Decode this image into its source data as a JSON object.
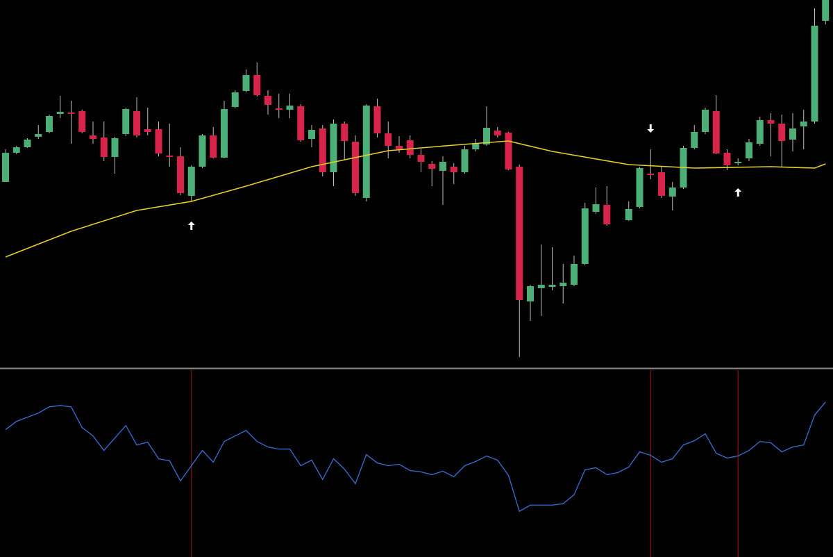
{
  "chart_data": {
    "type": "candlestick",
    "ylim": [
      0,
      530
    ],
    "up_color": "#4caf78",
    "down_color": "#d8234a",
    "open": [
      268,
      310,
      318,
      333,
      340,
      366,
      368,
      370,
      335,
      332,
      304,
      337,
      370,
      344,
      344,
      306,
      305,
      248,
      290,
      335,
      303,
      376,
      399,
      422,
      392,
      374,
      372,
      377,
      330,
      345,
      282,
      352,
      326,
      245,
      377,
      338,
      320,
      328,
      307,
      294,
      284,
      290,
      282,
      315,
      322,
      342,
      339,
      290,
      96,
      115,
      117,
      118,
      120,
      150,
      225,
      235,
      null,
      213,
      232,
      280,
      282,
      247,
      260,
      317,
      340,
      370,
      310,
      295,
      302,
      323,
      357,
      352,
      329,
      348,
      355,
      500
    ],
    "high": [
      315,
      320,
      331,
      350,
      365,
      392,
      385,
      372,
      355,
      355,
      333,
      375,
      390,
      375,
      355,
      352,
      318,
      292,
      337,
      347,
      385,
      400,
      430,
      440,
      400,
      395,
      395,
      380,
      350,
      350,
      358,
      355,
      335,
      380,
      388,
      355,
      334,
      335,
      315,
      298,
      305,
      295,
      320,
      330,
      377,
      347,
      340,
      293,
      120,
      178,
      174,
      150,
      162,
      238,
      260,
      262,
      null,
      240,
      290,
      315,
      290,
      268,
      320,
      350,
      375,
      393,
      315,
      302,
      330,
      362,
      367,
      365,
      367,
      372,
      518,
      530
    ],
    "low": [
      268,
      308,
      317,
      330,
      338,
      360,
      323,
      338,
      323,
      298,
      280,
      334,
      332,
      335,
      305,
      290,
      249,
      240,
      288,
      302,
      302,
      374,
      397,
      391,
      365,
      360,
      360,
      326,
      318,
      276,
      262,
      300,
      248,
      240,
      332,
      302,
      310,
      302,
      282,
      262,
      235,
      265,
      280,
      312,
      320,
      332,
      285,
      16,
      68,
      75,
      112,
      93,
      118,
      148,
      222,
      205,
      null,
      212,
      230,
      272,
      245,
      227,
      258,
      315,
      337,
      308,
      285,
      292,
      298,
      320,
      305,
      290,
      312,
      315,
      352,
      495
    ],
    "close": [
      310,
      318,
      329,
      337,
      363,
      369,
      367,
      340,
      330,
      304,
      331,
      373,
      335,
      340,
      309,
      304,
      252,
      290,
      335,
      303,
      373,
      397,
      422,
      393,
      379,
      372,
      378,
      328,
      343,
      282,
      352,
      327,
      252,
      378,
      338,
      320,
      315,
      307,
      297,
      287,
      297,
      282,
      315,
      324,
      346,
      335,
      286,
      98,
      118,
      120,
      120,
      123,
      150,
      230,
      236,
      207,
      null,
      229,
      288,
      278,
      248,
      260,
      317,
      340,
      372,
      309,
      292,
      297,
      325,
      357,
      352,
      327,
      345,
      355,
      493,
      530
    ],
    "ma": {
      "color": "#e6d12c",
      "x": [
        0,
        6,
        12,
        17,
        22,
        28,
        35,
        41,
        46,
        50,
        57,
        63,
        70,
        74,
        75
      ],
      "values": [
        160,
        197,
        227,
        240,
        262,
        290,
        313,
        321,
        327,
        312,
        293,
        288,
        290,
        288,
        294
      ]
    },
    "signals": [
      {
        "index": 17,
        "direction": "up",
        "value": 205
      },
      {
        "index": 59,
        "direction": "down",
        "value": 345
      },
      {
        "index": 67,
        "direction": "up",
        "value": 253
      }
    ],
    "signal_color": "#ffffff",
    "signal_line_color": "#a3161c",
    "oscillator": {
      "color": "#3b6fd4",
      "ylim": [
        0,
        270
      ],
      "values": [
        184,
        196,
        202,
        208,
        217,
        219,
        217,
        187,
        175,
        154,
        172,
        190,
        162,
        166,
        142,
        139,
        110,
        132,
        154,
        137,
        167,
        175,
        183,
        167,
        159,
        156,
        156,
        132,
        140,
        112,
        142,
        127,
        106,
        148,
        136,
        132,
        134,
        125,
        123,
        119,
        124,
        116,
        132,
        138,
        146,
        140,
        118,
        66,
        75,
        75,
        75,
        77,
        90,
        126,
        129,
        119,
        122,
        130,
        152,
        147,
        137,
        142,
        162,
        168,
        178,
        150,
        143,
        146,
        154,
        167,
        165,
        152,
        159,
        162,
        205,
        224
      ]
    }
  }
}
